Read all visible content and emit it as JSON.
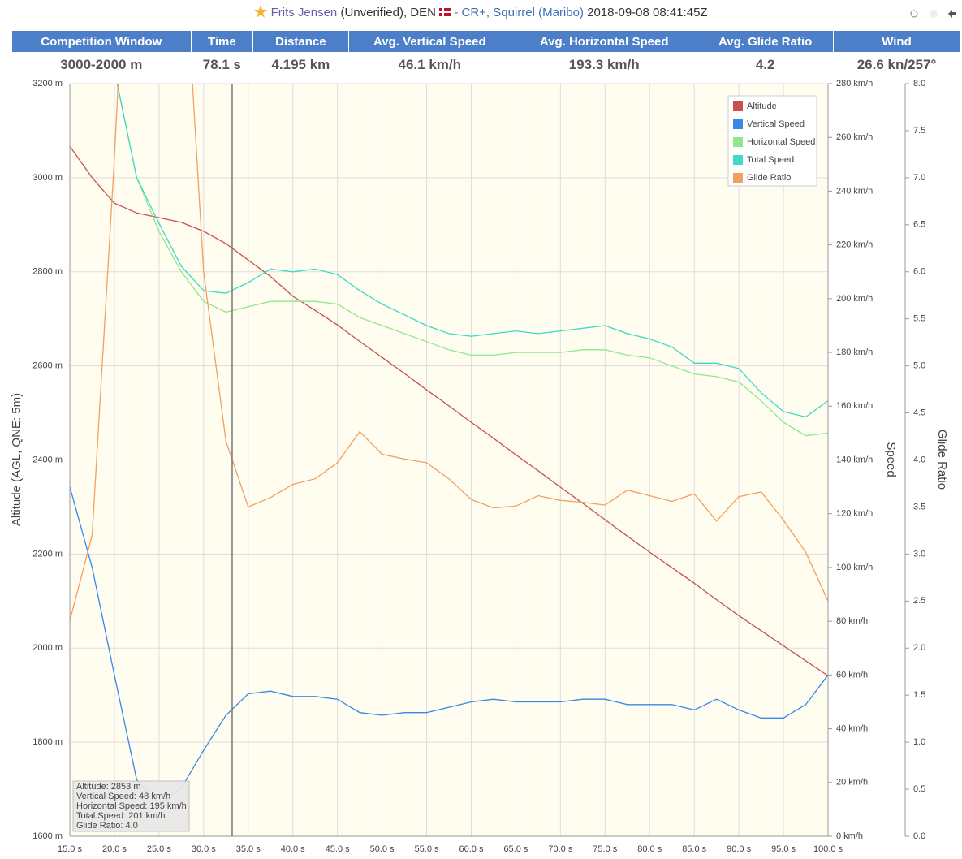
{
  "header": {
    "pilot": "Frits Jensen",
    "status": "(Unverified), DEN",
    "suit": "- CR+, Squirrel",
    "place": "(Maribo)",
    "datetime": "2018-09-08 08:41:45Z"
  },
  "table": {
    "headers": [
      "Competition Window",
      "Time",
      "Distance",
      "Avg. Vertical Speed",
      "Avg. Horizontal Speed",
      "Avg. Glide Ratio",
      "Wind"
    ],
    "values": [
      "3000-2000 m",
      "78.1 s",
      "4.195 km",
      "46.1 km/h",
      "193.3 km/h",
      "4.2",
      "26.6 kn/257°"
    ]
  },
  "chart_data": {
    "type": "line",
    "y_label": "Altitude (AGL, QNE: 5m)",
    "y2_label": "Speed",
    "y3_label": "Glide Ratio",
    "xlim": [
      15,
      100
    ],
    "ylim": [
      1600,
      3200
    ],
    "y2lim": [
      0,
      280
    ],
    "y3lim": [
      0,
      8
    ],
    "grid": true,
    "legend": "top-right",
    "cursor": 33.2,
    "xticks": [
      {
        "value": 15,
        "label": "15.0 s"
      },
      {
        "value": 20,
        "label": "20.0 s"
      },
      {
        "value": 25,
        "label": "25.0 s"
      },
      {
        "value": 30,
        "label": "30.0 s"
      },
      {
        "value": 35,
        "label": "35.0 s"
      },
      {
        "value": 40,
        "label": "40.0 s"
      },
      {
        "value": 45,
        "label": "45.0 s"
      },
      {
        "value": 50,
        "label": "50.0 s"
      },
      {
        "value": 55,
        "label": "55.0 s"
      },
      {
        "value": 60,
        "label": "60.0 s"
      },
      {
        "value": 65,
        "label": "65.0 s"
      },
      {
        "value": 70,
        "label": "70.0 s"
      },
      {
        "value": 75,
        "label": "75.0 s"
      },
      {
        "value": 80,
        "label": "80.0 s"
      },
      {
        "value": 85,
        "label": "85.0 s"
      },
      {
        "value": 90,
        "label": "90.0 s"
      },
      {
        "value": 95,
        "label": "95.0 s"
      },
      {
        "value": 100,
        "label": "100.0 s"
      }
    ],
    "yticks": [
      {
        "value": 1600,
        "label": "1600 m"
      },
      {
        "value": 1800,
        "label": "1800 m"
      },
      {
        "value": 2000,
        "label": "2000 m"
      },
      {
        "value": 2200,
        "label": "2200 m"
      },
      {
        "value": 2400,
        "label": "2400 m"
      },
      {
        "value": 2600,
        "label": "2600 m"
      },
      {
        "value": 2800,
        "label": "2800 m"
      },
      {
        "value": 3000,
        "label": "3000 m"
      },
      {
        "value": 3200,
        "label": "3200 m"
      }
    ],
    "y2ticks": [
      {
        "value": 0,
        "label": "0 km/h"
      },
      {
        "value": 20,
        "label": "20 km/h"
      },
      {
        "value": 40,
        "label": "40 km/h"
      },
      {
        "value": 60,
        "label": "60 km/h"
      },
      {
        "value": 80,
        "label": "80 km/h"
      },
      {
        "value": 100,
        "label": "100 km/h"
      },
      {
        "value": 120,
        "label": "120 km/h"
      },
      {
        "value": 140,
        "label": "140 km/h"
      },
      {
        "value": 160,
        "label": "160 km/h"
      },
      {
        "value": 180,
        "label": "180 km/h"
      },
      {
        "value": 200,
        "label": "200 km/h"
      },
      {
        "value": 220,
        "label": "220 km/h"
      },
      {
        "value": 240,
        "label": "240 km/h"
      },
      {
        "value": 260,
        "label": "260 km/h"
      },
      {
        "value": 280,
        "label": "280 km/h"
      }
    ],
    "y3ticks": [
      {
        "value": 0,
        "label": "0.0"
      },
      0.5,
      {
        "value": 1,
        "label": "1.0"
      },
      1.5,
      {
        "value": 2,
        "label": "2.0"
      },
      2.5,
      {
        "value": 3,
        "label": "3.0"
      },
      3.5,
      {
        "value": 4,
        "label": "4.0"
      },
      4.5,
      {
        "value": 5,
        "label": "5.0"
      },
      5.5,
      {
        "value": 6,
        "label": "6.0"
      },
      6.5,
      {
        "value": 7,
        "label": "7.0"
      },
      7.5,
      {
        "value": 8,
        "label": "8.0"
      }
    ],
    "x": [
      15,
      17.5,
      20,
      22.5,
      25,
      27.5,
      30,
      32.5,
      35,
      37.5,
      40,
      42.5,
      45,
      47.5,
      50,
      52.5,
      55,
      57.5,
      60,
      62.5,
      65,
      67.5,
      70,
      72.5,
      75,
      77.5,
      80,
      82.5,
      85,
      87.5,
      90,
      92.5,
      95,
      97.5,
      100
    ],
    "series": [
      {
        "name": "Altitude",
        "color": "#c9504f",
        "values": [
          3067,
          3000,
          2946,
          2925,
          2915,
          2905,
          2886,
          2860,
          2825,
          2790,
          2748,
          2718,
          2687,
          2652,
          2618,
          2584,
          2549,
          2515,
          2480,
          2446,
          2411,
          2377,
          2342,
          2308,
          2273,
          2238,
          2204,
          2171,
          2138,
          2103,
          2069,
          2037,
          2005,
          1973,
          1941
        ]
      },
      {
        "name": "Vertical Speed",
        "color": "#3a87e6",
        "axis": "y2",
        "values": [
          130,
          100,
          60,
          21,
          12,
          18,
          32,
          45,
          53,
          54,
          52,
          52,
          51,
          46,
          45,
          46,
          46,
          48,
          50,
          51,
          50,
          50,
          50,
          51,
          51,
          49,
          49,
          49,
          47,
          51,
          47,
          44,
          44,
          49,
          60
        ]
      },
      {
        "name": "Horizontal Speed",
        "color": "#90e88a",
        "axis": "y2",
        "values": [
          null,
          null,
          285,
          245,
          225,
          210,
          199,
          195,
          197,
          199,
          199,
          199,
          198,
          193,
          190,
          187,
          184,
          181,
          179,
          179,
          180,
          180,
          180,
          181,
          181,
          179,
          178,
          175,
          172,
          171,
          169,
          162,
          154,
          149,
          150
        ]
      },
      {
        "name": "Total Speed",
        "color": "#3fd9c7",
        "axis": "y2",
        "values": [
          null,
          null,
          285,
          245,
          228,
          212,
          203,
          202,
          206,
          211,
          210,
          211,
          209,
          203,
          198,
          194,
          190,
          187,
          186,
          187,
          188,
          187,
          188,
          189,
          190,
          187,
          185,
          182,
          176,
          176,
          174,
          165,
          158,
          156,
          162
        ]
      },
      {
        "name": "Glide Ratio",
        "color": "#f0a060",
        "axis": "y3",
        "values": [
          2.29,
          3.2,
          7.2,
          12,
          14,
          10,
          6.0,
          4.2,
          3.5,
          3.6,
          3.74,
          3.8,
          3.97,
          4.3,
          4.06,
          4.01,
          3.97,
          3.8,
          3.58,
          3.49,
          3.51,
          3.62,
          3.57,
          3.55,
          3.52,
          3.68,
          3.62,
          3.56,
          3.64,
          3.35,
          3.61,
          3.66,
          3.36,
          3.02,
          2.5
        ]
      }
    ],
    "tooltip": [
      "Altitude: 2853 m",
      "Vertical Speed: 48 km/h",
      "Horizontal Speed: 195 km/h",
      "Total Speed: 201 km/h",
      "Glide Ratio: 4.0"
    ]
  }
}
